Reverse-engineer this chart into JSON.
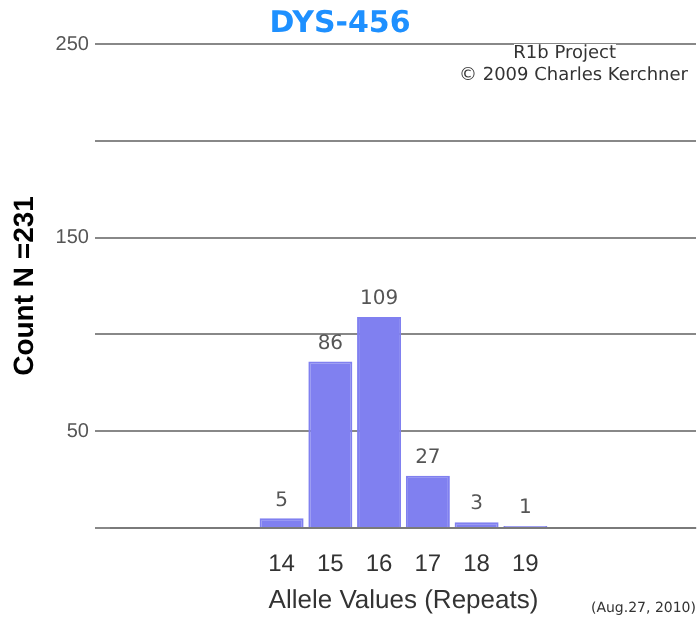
{
  "chart_data": {
    "type": "bar",
    "title": "DYS-456",
    "xlabel": "Allele Values (Repeats)",
    "ylabel": "Count N =231",
    "categories": [
      null,
      null,
      null,
      "14",
      "15",
      "16",
      "17",
      "18",
      "19",
      null,
      null,
      null
    ],
    "values": [
      null,
      null,
      null,
      5,
      86,
      109,
      27,
      3,
      1,
      null,
      null,
      null
    ],
    "color": "#8080f0",
    "ylim": [
      0,
      250
    ],
    "yticks": [
      {
        "value": 0,
        "label": null
      },
      50,
      {
        "value": 100,
        "label": null
      },
      150,
      {
        "value": 200,
        "label": null
      },
      250
    ],
    "grid": "y",
    "data_labels": true,
    "annotations": [
      "R1b Project",
      "© 2009 Charles Kerchner",
      "(Aug.27, 2010)"
    ]
  }
}
